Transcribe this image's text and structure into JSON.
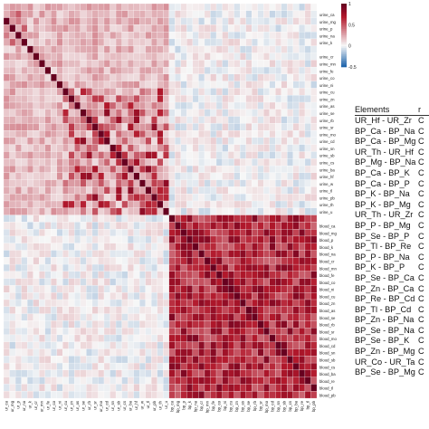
{
  "chart_data": {
    "type": "heatmap",
    "title": "",
    "row_labels": [
      "",
      "urine_ca",
      "urine_mg",
      "urine_p",
      "urine_na",
      "urine_k",
      "",
      "urine_cr",
      "urine_mn",
      "urine_fe",
      "urine_co",
      "urine_ni",
      "urine_cu",
      "urine_zn",
      "urine_as",
      "urine_se",
      "urine_rb",
      "urine_sr",
      "urine_mo",
      "urine_cd",
      "urine_sn",
      "urine_sb",
      "urine_cs",
      "urine_ba",
      "urine_hf",
      "urine_w",
      "urine_tl",
      "urine_pb",
      "urine_th",
      "urine_u",
      "",
      "blood_ca",
      "blood_mg",
      "blood_p",
      "blood_k",
      "blood_na",
      "blood_cr",
      "blood_mn",
      "blood_fe",
      "blood_co",
      "blood_ni",
      "blood_cu",
      "blood_zn",
      "blood_as",
      "blood_se",
      "blood_rb",
      "blood_sr",
      "blood_mo",
      "blood_cd",
      "blood_sn",
      "blood_sb",
      "blood_cs",
      "blood_ba",
      "blood_re",
      "blood_tl",
      "blood_pb"
    ],
    "col_labels_visible": [
      "ur_ca",
      "ur_mg",
      "ur_p",
      "ur_na",
      "ur_k",
      "ur_cr",
      "ur_mn",
      "ur_fe",
      "ur_co",
      "ur_ni",
      "ur_cu",
      "ur_zn",
      "ur_as",
      "ur_se",
      "ur_rb",
      "ur_sr",
      "ur_mo",
      "ur_cd",
      "ur_sn",
      "ur_sb",
      "ur_cs",
      "ur_ba",
      "ur_hf",
      "ur_w",
      "ur_tl",
      "ur_pb",
      "ur_th",
      "ur_u",
      "bp_ca",
      "bp_mg",
      "bp_p",
      "bp_k",
      "bp_na",
      "bp_cr",
      "bp_mn",
      "bp_fe",
      "bp_co",
      "bp_ni",
      "bp_cu",
      "bp_zn",
      "bp_as",
      "bp_se",
      "bp_rb",
      "bp_sr",
      "bp_mo",
      "bp_cd",
      "bp_sn",
      "bp_sb",
      "bp_cs",
      "bp_ba",
      "bp_re",
      "bp_tl",
      "bp_pb"
    ],
    "blocks": {
      "urine_block_rows": [
        0,
        29
      ],
      "blood_block_rows": [
        30,
        54
      ],
      "note": "urine-urine and blood-blood blocks show positive correlations (red); cross blocks near zero/slightly negative (blue)"
    },
    "scale": {
      "min": -0.5,
      "max": 1,
      "ticks": [
        "1",
        "0.5",
        "0",
        "-0.5"
      ]
    },
    "colors": {
      "low": "#2166ac",
      "mid": "#f7f7f7",
      "high": "#b2182b",
      "max": "#67001f"
    }
  },
  "table": {
    "header": [
      "Elements",
      "r"
    ],
    "rows": [
      [
        "UR_Hf - UR_Zr",
        "C"
      ],
      [
        "BP_Ca - BP_Na",
        "C"
      ],
      [
        "BP_Ca - BP_Mg",
        "C"
      ],
      [
        "UR_Th - UR_Hf",
        "C"
      ],
      [
        "BP_Mg - BP_Na",
        "C"
      ],
      [
        "BP_Ca - BP_K",
        "C"
      ],
      [
        "BP_Ca - BP_P",
        "C"
      ],
      [
        "BP_K - BP_Na",
        "C"
      ],
      [
        "BP_K - BP_Mg",
        "C"
      ],
      [
        "UR_Th - UR_Zr",
        "C"
      ],
      [
        "BP_P - BP_Mg",
        "C"
      ],
      [
        "BP_Se - BP_P",
        "C"
      ],
      [
        "BP_Tl - BP_Re",
        "C"
      ],
      [
        "BP_P - BP_Na",
        "C"
      ],
      [
        "BP_K - BP_P",
        "C"
      ],
      [
        "BP_Se - BP_Ca",
        "C"
      ],
      [
        "BP_Zn - BP_Ca",
        "C"
      ],
      [
        "BP_Re - BP_Cd",
        "C"
      ],
      [
        "BP_Tl - BP_Cd",
        "C"
      ],
      [
        "BP_Zn - BP_Na",
        "C"
      ],
      [
        "BP_Se - BP_Na",
        "C"
      ],
      [
        "BP_Se - BP_K",
        "C"
      ],
      [
        "BP_Zn - BP_Mg",
        "C"
      ],
      [
        "UR_Co - UR_Ta",
        "C"
      ],
      [
        "BP_Se - BP_Mg",
        "C"
      ]
    ]
  }
}
